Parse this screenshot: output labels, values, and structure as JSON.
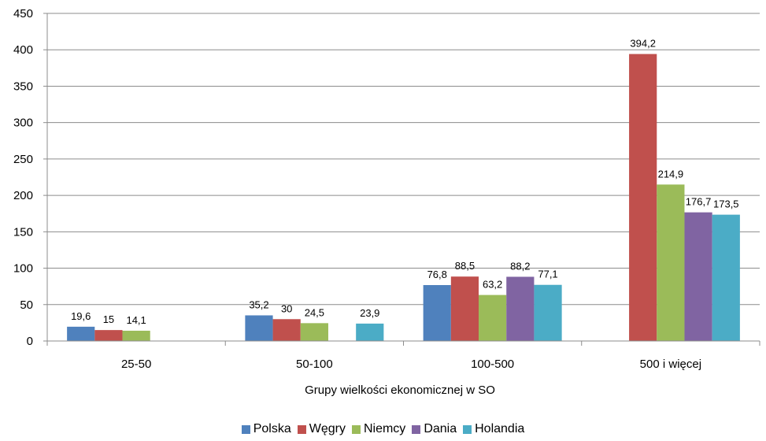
{
  "chart_data": {
    "type": "bar",
    "title": "",
    "xlabel": "Grupy wielkości ekonomicznej w SO",
    "ylabel": "",
    "ylim": [
      0,
      450
    ],
    "yticks": [
      "0",
      "50",
      "100",
      "150",
      "200",
      "250",
      "300",
      "350",
      "400",
      "450"
    ],
    "categories": [
      "25-50",
      "50-100",
      "100-500",
      "500 i więcej"
    ],
    "grid": true,
    "legend_position": "bottom",
    "series": [
      {
        "name": "Polska",
        "color": "#4F81BD",
        "values": [
          19.6,
          35.2,
          76.8,
          null
        ],
        "labels": [
          "19,6",
          "35,2",
          "76,8",
          ""
        ]
      },
      {
        "name": "Węgry",
        "color": "#C0504D",
        "values": [
          15,
          30,
          88.5,
          394.2
        ],
        "labels": [
          "15",
          "30",
          "88,5",
          "394,2"
        ]
      },
      {
        "name": "Niemcy",
        "color": "#9BBB59",
        "values": [
          14.1,
          24.5,
          63.2,
          214.9
        ],
        "labels": [
          "14,1",
          "24,5",
          "63,2",
          "214,9"
        ]
      },
      {
        "name": "Dania",
        "color": "#8064A2",
        "values": [
          null,
          null,
          88.2,
          176.7
        ],
        "labels": [
          "",
          "",
          "88,2",
          "176,7"
        ]
      },
      {
        "name": "Holandia",
        "color": "#4BACC6",
        "values": [
          null,
          23.9,
          77.1,
          173.5
        ],
        "labels": [
          "",
          "23,9",
          "77,1",
          "173,5"
        ]
      }
    ]
  }
}
